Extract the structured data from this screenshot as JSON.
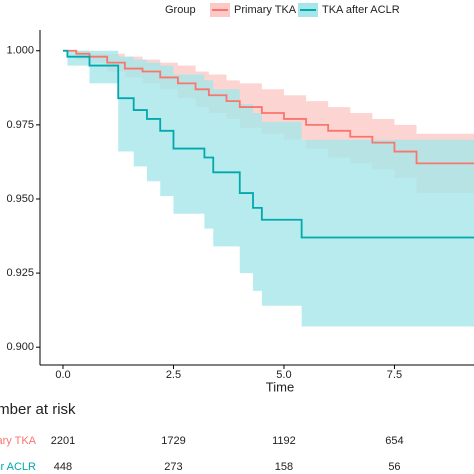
{
  "chart_data": {
    "type": "step",
    "legend_title": "Group",
    "xlabel": "Time",
    "xlim": [
      -0.52,
      9.3
    ],
    "ylim": [
      0.894,
      1.007
    ],
    "xticks": [
      {
        "value": 0,
        "label": "0.0"
      },
      2.5,
      {
        "value": 5,
        "label": "5.0"
      },
      7.5
    ],
    "yticks": [
      {
        "value": 1,
        "label": "1.000"
      },
      0.975,
      {
        "value": 0.95,
        "label": "0.950"
      },
      0.925,
      {
        "value": 0.9,
        "label": "0.900"
      }
    ],
    "grid": false,
    "series": [
      {
        "name": "Primary TKA",
        "color": "#f8766d",
        "band_color": "#fbc9c6",
        "x": [
          0,
          0.3,
          0.6,
          1.0,
          1.4,
          1.8,
          2.2,
          2.6,
          3.0,
          3.3,
          3.7,
          4.0,
          4.5,
          5.0,
          5.5,
          6.0,
          6.5,
          7.0,
          7.5,
          8.0,
          9.3
        ],
        "values": [
          1.0,
          0.999,
          0.998,
          0.996,
          0.994,
          0.993,
          0.991,
          0.989,
          0.987,
          0.985,
          0.983,
          0.981,
          0.979,
          0.977,
          0.975,
          0.973,
          0.971,
          0.969,
          0.966,
          0.962,
          0.962
        ],
        "upper": [
          1.0,
          1.0,
          0.999,
          0.999,
          0.998,
          0.997,
          0.996,
          0.995,
          0.993,
          0.992,
          0.99,
          0.989,
          0.987,
          0.985,
          0.983,
          0.981,
          0.979,
          0.977,
          0.975,
          0.972,
          0.972
        ],
        "lower": [
          1.0,
          0.997,
          0.996,
          0.993,
          0.991,
          0.989,
          0.987,
          0.984,
          0.981,
          0.979,
          0.977,
          0.974,
          0.972,
          0.97,
          0.967,
          0.964,
          0.962,
          0.96,
          0.957,
          0.952,
          0.952
        ]
      },
      {
        "name": "TKA after ACLR",
        "color": "#00a9ae",
        "band_color": "#a6e6e8",
        "x": [
          0,
          0.1,
          0.6,
          1.25,
          1.6,
          1.9,
          2.2,
          2.5,
          3.2,
          3.4,
          4.0,
          4.3,
          4.5,
          5.4,
          9.3
        ],
        "values": [
          1.0,
          0.998,
          0.995,
          0.984,
          0.98,
          0.977,
          0.973,
          0.967,
          0.964,
          0.959,
          0.952,
          0.947,
          0.943,
          0.937,
          0.937
        ],
        "upper": [
          1.0,
          1.0,
          1.0,
          0.998,
          0.997,
          0.996,
          0.995,
          0.992,
          0.99,
          0.987,
          0.982,
          0.979,
          0.976,
          0.97,
          0.97
        ],
        "lower": [
          1.0,
          0.995,
          0.989,
          0.966,
          0.961,
          0.956,
          0.951,
          0.945,
          0.94,
          0.934,
          0.925,
          0.919,
          0.914,
          0.907,
          0.907
        ]
      }
    ],
    "risk_table": {
      "title": "Number at risk",
      "rows": [
        [
          2201,
          1729,
          1192,
          654
        ],
        [
          448,
          273,
          158,
          56
        ]
      ]
    }
  }
}
